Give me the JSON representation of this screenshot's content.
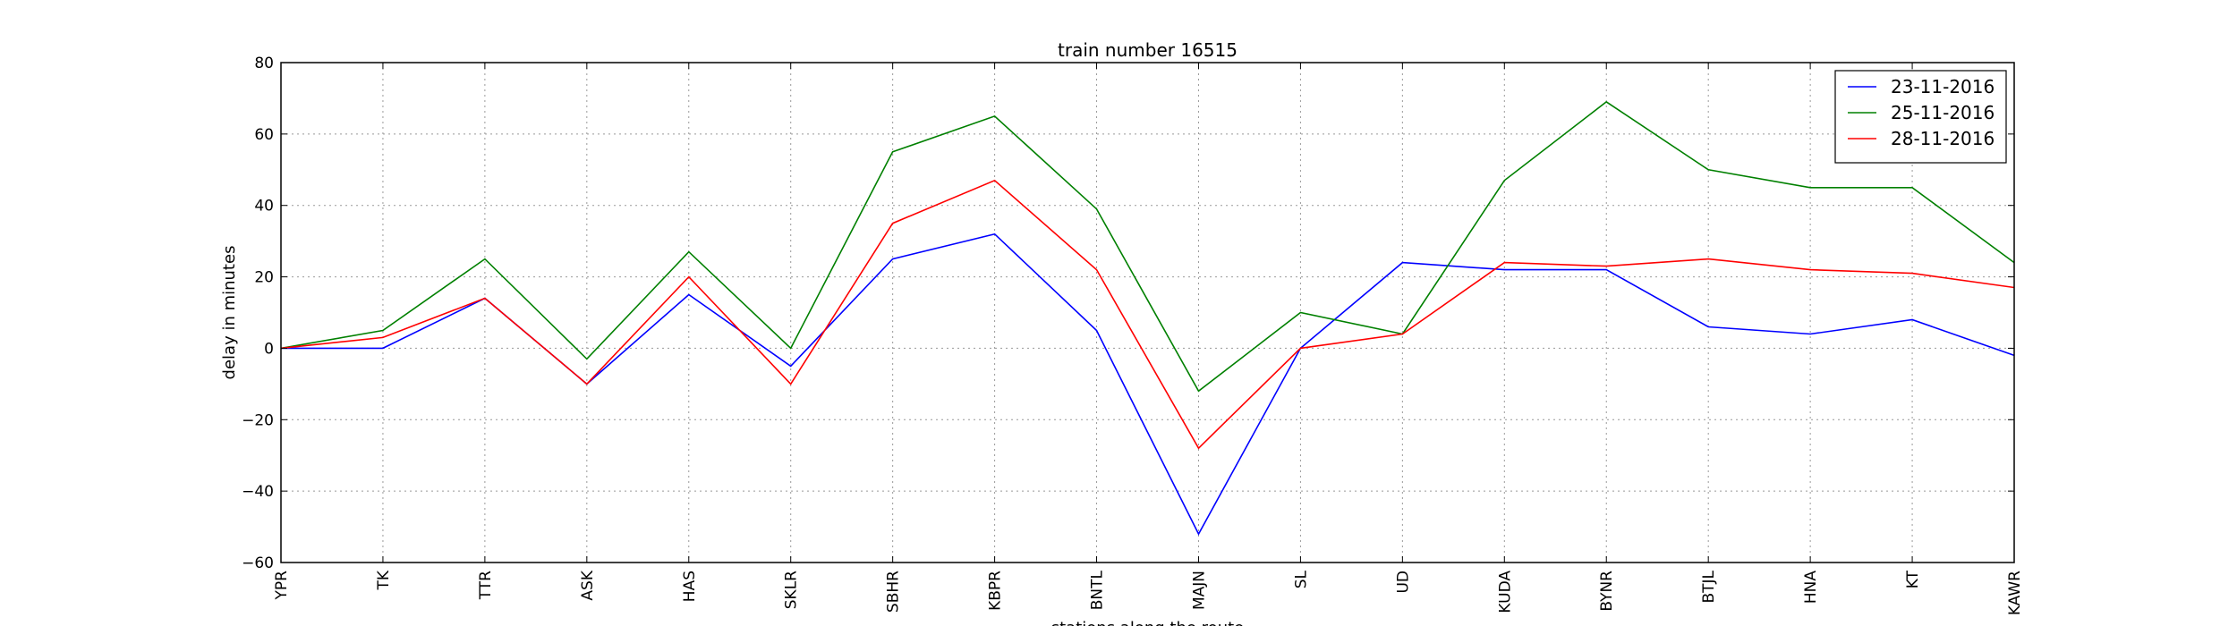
{
  "chart_data": {
    "type": "line",
    "title": "train number 16515",
    "xlabel": "stations along the route",
    "ylabel": "delay in minutes",
    "categories": [
      "YPR",
      "TK",
      "TTR",
      "ASK",
      "HAS",
      "SKLR",
      "SBHR",
      "KBPR",
      "BNTL",
      "MAJN",
      "SL",
      "UD",
      "KUDA",
      "BYNR",
      "BTJL",
      "HNA",
      "KT",
      "KAWR"
    ],
    "ylim": [
      -60,
      80
    ],
    "yticks": [
      -60,
      -40,
      -20,
      0,
      20,
      40,
      60,
      80
    ],
    "grid": true,
    "legend_position": "top-right",
    "series": [
      {
        "name": "23-11-2016",
        "color": "#0000ff",
        "values": [
          0,
          0,
          14,
          -10,
          15,
          -5,
          25,
          32,
          5,
          -52,
          0,
          24,
          22,
          22,
          6,
          4,
          8,
          -2
        ]
      },
      {
        "name": "25-11-2016",
        "color": "#008000",
        "values": [
          0,
          5,
          25,
          -3,
          27,
          0,
          55,
          65,
          39,
          -12,
          10,
          4,
          47,
          69,
          50,
          45,
          45,
          24
        ]
      },
      {
        "name": "28-11-2016",
        "color": "#ff0000",
        "values": [
          0,
          3,
          14,
          -10,
          20,
          -10,
          35,
          47,
          22,
          -28,
          0,
          4,
          24,
          23,
          25,
          22,
          21,
          17
        ]
      }
    ]
  }
}
